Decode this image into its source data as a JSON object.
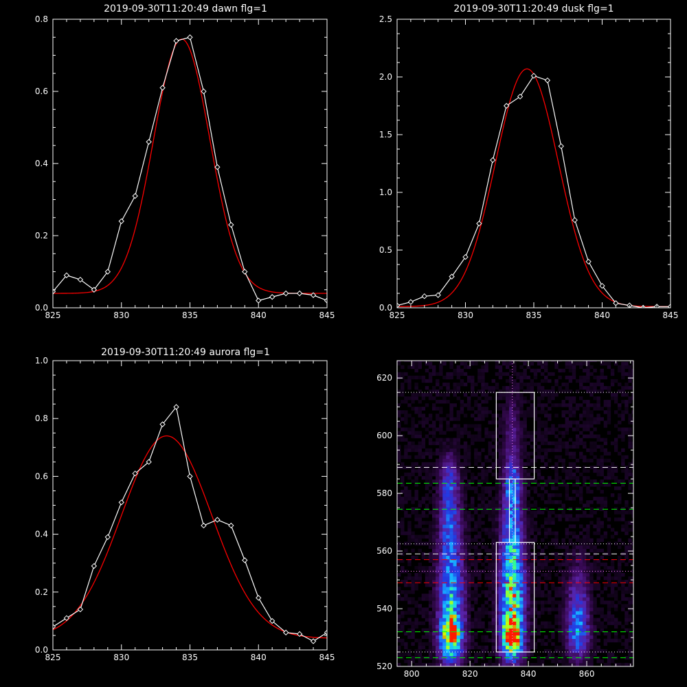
{
  "chart_data": [
    {
      "type": "line",
      "title": "2019-09-30T11:20:49 dawn flg=1",
      "xlim": [
        825,
        845
      ],
      "ylim": [
        0,
        0.8
      ],
      "xticks": [
        825,
        830,
        835,
        840,
        845
      ],
      "yticks": [
        0.0,
        0.2,
        0.4,
        0.6,
        0.8
      ],
      "ytick_labels": [
        "0.0",
        "0.2",
        "0.4",
        "0.6",
        "0.8"
      ],
      "series": [
        {
          "style": "data",
          "color": "#ffffff",
          "marker": "diamond",
          "x": [
            825,
            826,
            827,
            828,
            829,
            830,
            831,
            832,
            833,
            834,
            835,
            836,
            837,
            838,
            839,
            840,
            841,
            842,
            843,
            844,
            845
          ],
          "y": [
            0.045,
            0.09,
            0.078,
            0.05,
            0.1,
            0.24,
            0.31,
            0.46,
            0.61,
            0.74,
            0.75,
            0.6,
            0.39,
            0.23,
            0.1,
            0.02,
            0.03,
            0.04,
            0.04,
            0.035,
            0.02
          ]
        },
        {
          "style": "fit",
          "color": "#ff0000",
          "gaussian": {
            "amp": 0.705,
            "center": 834.4,
            "sigma": 2.05,
            "base": 0.04
          }
        }
      ]
    },
    {
      "type": "line",
      "title": "2019-09-30T11:20:49 dusk flg=1",
      "xlim": [
        825,
        845
      ],
      "ylim": [
        0,
        2.5
      ],
      "xticks": [
        825,
        830,
        835,
        840,
        845
      ],
      "yticks": [
        0.0,
        0.5,
        1.0,
        1.5,
        2.0,
        2.5
      ],
      "ytick_labels": [
        "0.0",
        "0.5",
        "1.0",
        "1.5",
        "2.0",
        "2.5"
      ],
      "series": [
        {
          "style": "data",
          "color": "#ffffff",
          "marker": "diamond",
          "x": [
            825,
            826,
            827,
            828,
            829,
            830,
            831,
            832,
            833,
            834,
            835,
            836,
            837,
            838,
            839,
            840,
            841,
            842,
            843,
            844,
            845
          ],
          "y": [
            0.02,
            0.05,
            0.1,
            0.11,
            0.27,
            0.44,
            0.73,
            1.28,
            1.75,
            1.83,
            2.01,
            1.97,
            1.4,
            0.76,
            0.4,
            0.19,
            0.04,
            0.02,
            0.0,
            0.01,
            0.01
          ]
        },
        {
          "style": "fit",
          "color": "#ff0000",
          "gaussian": {
            "amp": 2.06,
            "center": 834.5,
            "sigma": 2.3,
            "base": 0.01
          }
        }
      ]
    },
    {
      "type": "line",
      "title": "2019-09-30T11:20:49 aurora flg=1",
      "xlim": [
        825,
        845
      ],
      "ylim": [
        0,
        1.0
      ],
      "xticks": [
        825,
        830,
        835,
        840,
        845
      ],
      "yticks": [
        0.0,
        0.2,
        0.4,
        0.6,
        0.8,
        1.0
      ],
      "ytick_labels": [
        "0.0",
        "0.2",
        "0.4",
        "0.6",
        "0.8",
        "1.0"
      ],
      "series": [
        {
          "style": "data",
          "color": "#ffffff",
          "marker": "diamond",
          "x": [
            825,
            826,
            827,
            828,
            829,
            830,
            831,
            832,
            833,
            834,
            835,
            836,
            837,
            838,
            839,
            840,
            841,
            842,
            843,
            844,
            845
          ],
          "y": [
            0.08,
            0.11,
            0.14,
            0.29,
            0.39,
            0.51,
            0.61,
            0.65,
            0.78,
            0.84,
            0.6,
            0.43,
            0.45,
            0.43,
            0.31,
            0.18,
            0.1,
            0.06,
            0.055,
            0.03,
            0.06
          ]
        },
        {
          "style": "fit",
          "color": "#ff0000",
          "gaussian": {
            "amp": 0.7,
            "center": 833.3,
            "sigma": 3.3,
            "base": 0.04
          }
        }
      ]
    },
    {
      "type": "heatmap",
      "xlim": [
        795,
        876
      ],
      "ylim": [
        520,
        626
      ],
      "xticks": [
        800,
        820,
        840,
        860
      ],
      "yticks": [
        520,
        540,
        560,
        580,
        600,
        620
      ],
      "colormap": [
        "#000000",
        "#3a0a58",
        "#5a22a6",
        "#2436e0",
        "#1890ff",
        "#18c8ff",
        "#30ff90",
        "#d0ff00",
        "#ff1a00"
      ],
      "intensity_peaks": [
        {
          "x": 813.5,
          "y": 530,
          "sx": 2.6,
          "sy": 5.5,
          "amp": 0.78
        },
        {
          "x": 813.5,
          "y": 545,
          "sx": 2.8,
          "sy": 11,
          "amp": 0.55
        },
        {
          "x": 813.0,
          "y": 568,
          "sx": 2.5,
          "sy": 8,
          "amp": 0.32
        },
        {
          "x": 813.0,
          "y": 584,
          "sx": 2.2,
          "sy": 6,
          "amp": 0.3
        },
        {
          "x": 834.5,
          "y": 530,
          "sx": 2.4,
          "sy": 5,
          "amp": 1.0
        },
        {
          "x": 834.5,
          "y": 545,
          "sx": 2.8,
          "sy": 10,
          "amp": 0.72
        },
        {
          "x": 834.5,
          "y": 565,
          "sx": 2.4,
          "sy": 8,
          "amp": 0.45
        },
        {
          "x": 834.5,
          "y": 582,
          "sx": 2.0,
          "sy": 6,
          "amp": 0.42
        },
        {
          "x": 834.5,
          "y": 600,
          "sx": 2.0,
          "sy": 10,
          "amp": 0.15
        },
        {
          "x": 857.0,
          "y": 532,
          "sx": 2.5,
          "sy": 6,
          "amp": 0.42
        },
        {
          "x": 857.0,
          "y": 545,
          "sx": 2.5,
          "sy": 8,
          "amp": 0.22
        }
      ],
      "boxes": [
        {
          "x": [
            829,
            842
          ],
          "y": [
            585,
            615
          ],
          "color": "#ffffff"
        },
        {
          "x": [
            829,
            842
          ],
          "y": [
            525,
            563
          ],
          "color": "#ffffff"
        }
      ],
      "connector_lines": {
        "x": [
          833.5,
          835.5
        ],
        "y": [
          563,
          585
        ],
        "color": "#ffffff"
      },
      "vertical_dotted": {
        "x": 834.5,
        "color": "#ff80ff"
      },
      "hlines": [
        {
          "y": 615,
          "style": "dotted",
          "color": "#ffffff"
        },
        {
          "y": 589,
          "style": "dashed",
          "color": "#ffffff"
        },
        {
          "y": 583.5,
          "style": "dashed",
          "color": "#00ff00"
        },
        {
          "y": 574.5,
          "style": "dashed",
          "color": "#00ff00"
        },
        {
          "y": 562.5,
          "style": "dotted",
          "color": "#ffffff"
        },
        {
          "y": 559,
          "style": "dashed",
          "color": "#ffffff"
        },
        {
          "y": 557,
          "style": "dashed",
          "color": "#ff0000"
        },
        {
          "y": 553,
          "style": "dotted",
          "color": "#ff80ff"
        },
        {
          "y": 549,
          "style": "dashed",
          "color": "#ff0000"
        },
        {
          "y": 532,
          "style": "dashed",
          "color": "#00ff00"
        },
        {
          "y": 525,
          "style": "dotted",
          "color": "#ffffff"
        },
        {
          "y": 523,
          "style": "dashed",
          "color": "#00ff00"
        }
      ]
    }
  ]
}
